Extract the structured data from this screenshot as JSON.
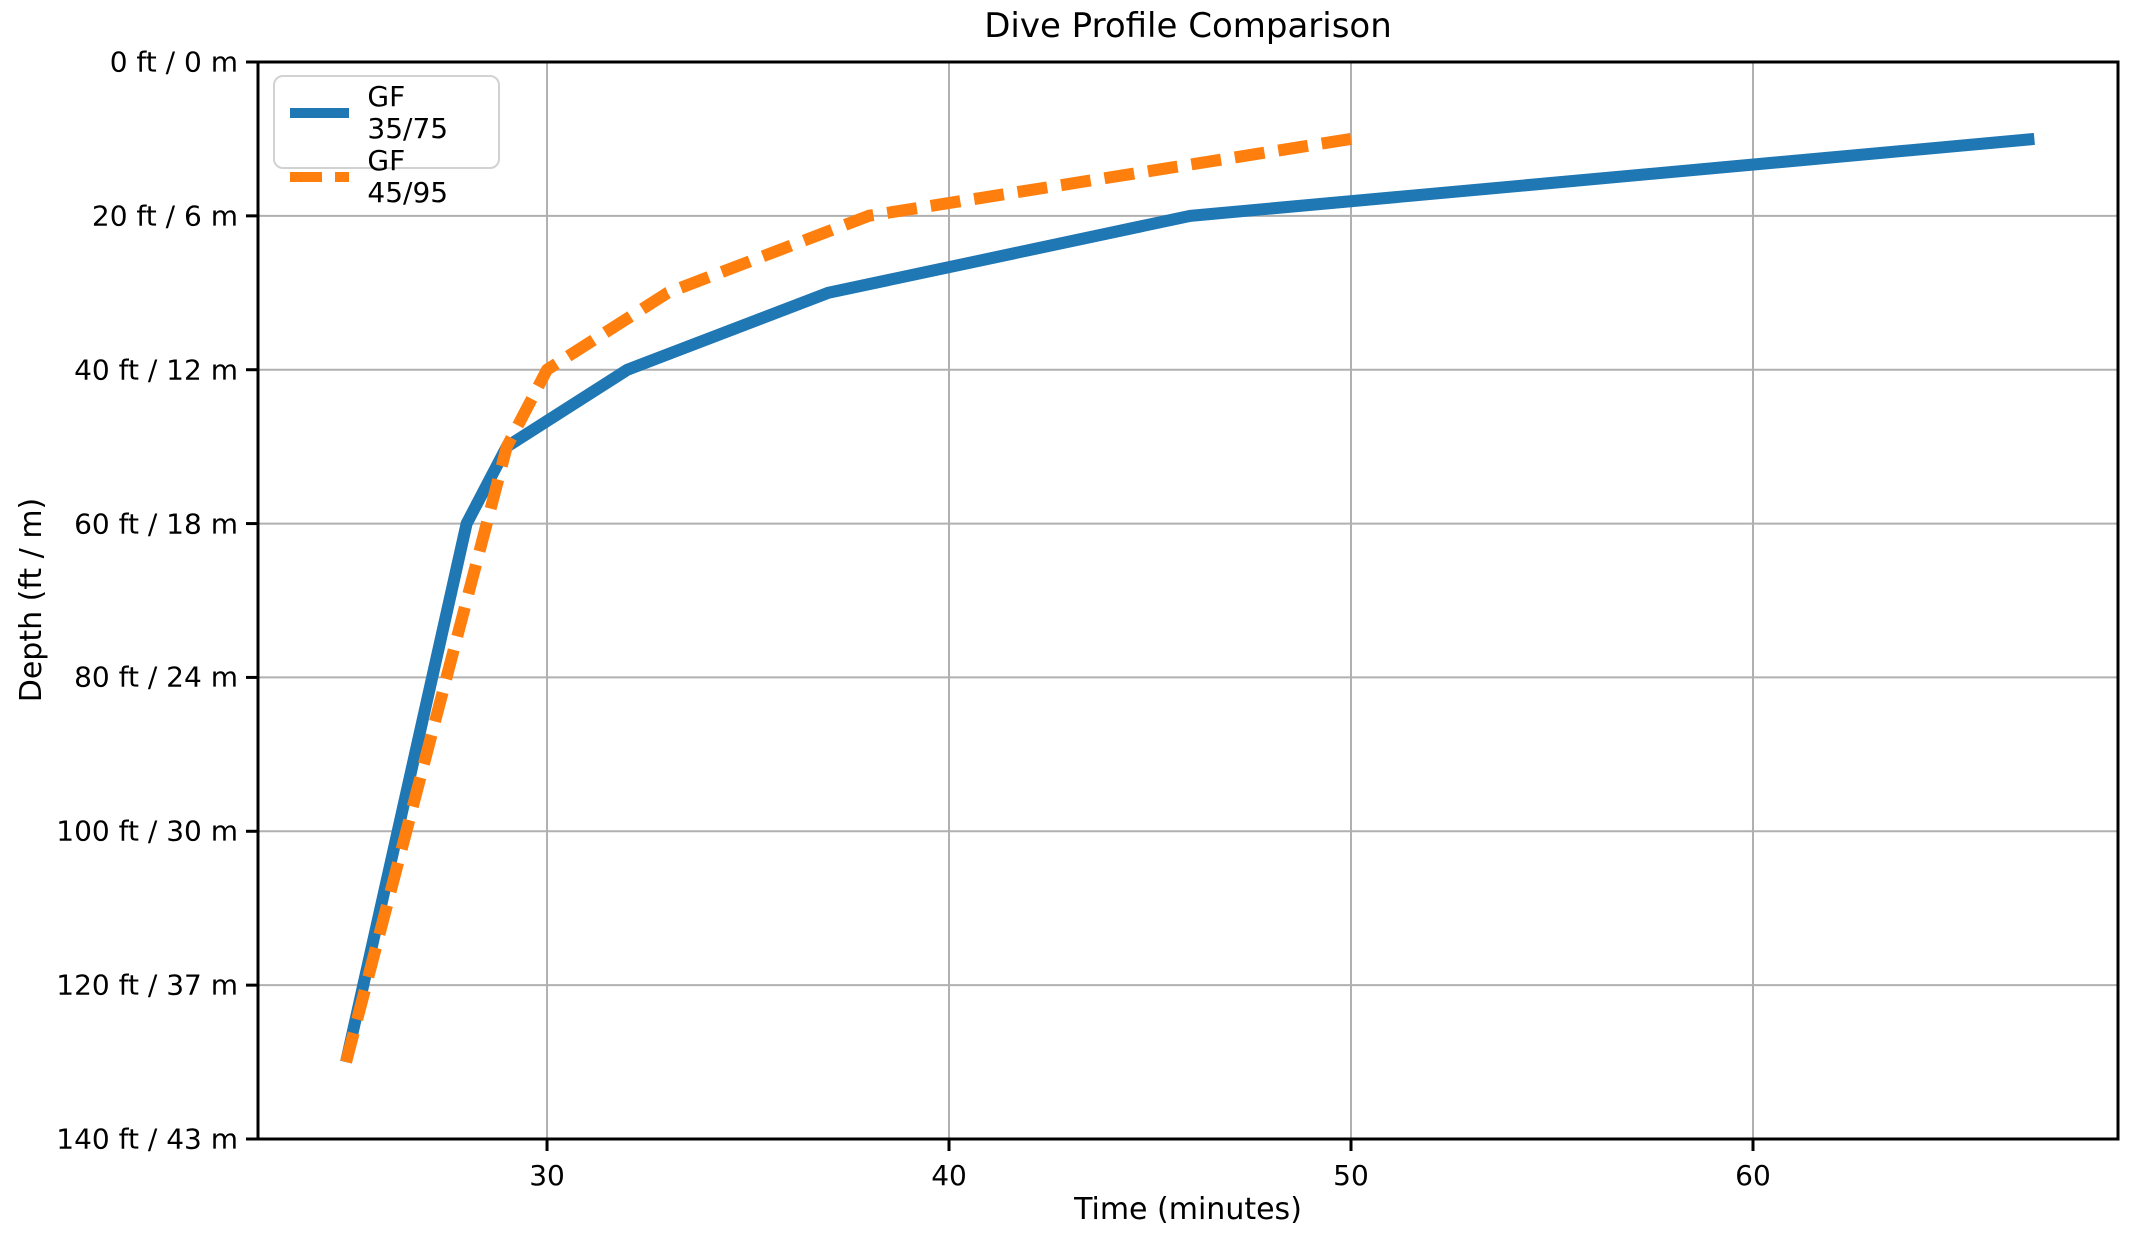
{
  "chart_data": {
    "type": "line",
    "title": "Dive Profile Comparison",
    "xlabel": "Time (minutes)",
    "ylabel": "Depth (ft / m)",
    "grid": true,
    "legend_position": "upper left",
    "x_ticks": [
      30,
      40,
      50,
      60
    ],
    "x_tick_labels": [
      "30",
      "40",
      "50",
      "60"
    ],
    "xlim": [
      22.81,
      69.08
    ],
    "y_ticks": [
      0,
      20,
      40,
      60,
      80,
      100,
      120,
      140
    ],
    "y_tick_labels": [
      "0 ft / 0 m",
      "20 ft / 6 m",
      "40 ft / 12 m",
      "60 ft / 18 m",
      "80 ft / 24 m",
      "100 ft / 30 m",
      "120 ft / 37 m",
      "140 ft / 43 m"
    ],
    "ylim": [
      140,
      0
    ],
    "y_axis_inverted": true,
    "series": [
      {
        "name": "GF 35/75",
        "color": "#1f77b4",
        "style": "solid",
        "points": [
          [
            25,
            130
          ],
          [
            28,
            60
          ],
          [
            29,
            50
          ],
          [
            32,
            40
          ],
          [
            37,
            30
          ],
          [
            46,
            20
          ],
          [
            67,
            10
          ]
        ]
      },
      {
        "name": "GF 45/95",
        "color": "#ff7f0e",
        "style": "dashed",
        "points": [
          [
            25,
            130
          ],
          [
            29,
            50
          ],
          [
            30,
            40
          ],
          [
            33,
            30
          ],
          [
            38,
            20
          ],
          [
            50,
            10
          ]
        ]
      }
    ]
  },
  "colors": {
    "background": "#ffffff",
    "grid": "#b0b0b0",
    "spine": "#000000",
    "tick": "#000000"
  }
}
